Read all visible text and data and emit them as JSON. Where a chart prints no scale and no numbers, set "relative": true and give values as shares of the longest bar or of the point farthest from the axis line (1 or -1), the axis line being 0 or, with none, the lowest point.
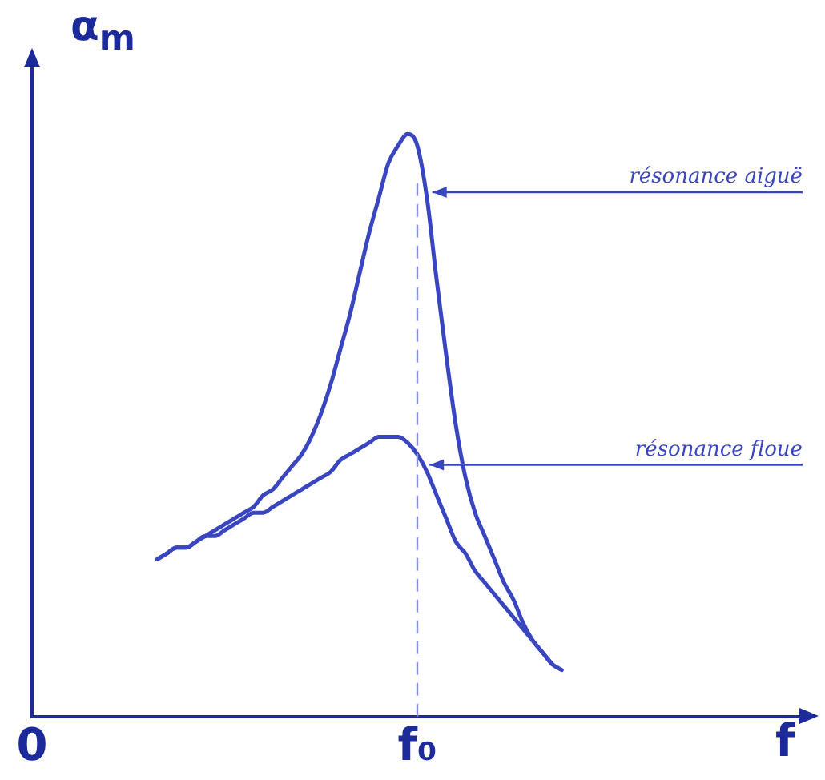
{
  "chart_data": {
    "type": "line",
    "relative": true,
    "xlabel": "f",
    "ylabel": "α$_{m}$",
    "categories": [
      "0",
      null,
      null,
      null,
      null,
      null,
      null,
      null,
      null,
      null,
      null,
      null,
      null,
      null,
      null,
      null,
      null,
      null,
      null,
      null,
      null,
      null,
      null,
      null,
      null,
      null,
      null,
      null,
      null,
      null,
      null,
      null,
      null,
      null,
      null,
      null,
      null,
      null,
      null,
      null,
      "f₀",
      null,
      null,
      null,
      null,
      null,
      null,
      null,
      null,
      null,
      null,
      null,
      null,
      null,
      null,
      null,
      null,
      null,
      null,
      null,
      null,
      null,
      null,
      null,
      null,
      null,
      null,
      null,
      null,
      null,
      null,
      null,
      null,
      null,
      null,
      null,
      null,
      null,
      null,
      null,
      null
    ],
    "grid": false,
    "legend": false,
    "marker": "none",
    "line_style": "solid",
    "ref_lines": [
      {
        "axis": "x",
        "value": "f₀",
        "label": null,
        "line_style": "dashed",
        "color": "#8a90d8"
      }
    ],
    "series": [
      {
        "name": "résonance aiguë",
        "color": "#3a46c0",
        "values": [
          null,
          null,
          null,
          null,
          null,
          null,
          null,
          null,
          null,
          null,
          null,
          null,
          null,
          0.27,
          0.28,
          0.29,
          0.29,
          0.3,
          0.31,
          0.32,
          0.33,
          0.34,
          0.35,
          0.36,
          0.38,
          0.39,
          0.41,
          0.43,
          0.45,
          0.48,
          0.52,
          0.57,
          0.63,
          0.69,
          0.76,
          0.83,
          0.89,
          0.95,
          0.98,
          1,
          0.98,
          0.89,
          0.75,
          0.62,
          0.5,
          0.41,
          0.35,
          0.31,
          0.27,
          0.23,
          0.2,
          0.16,
          0.13,
          0.11,
          0.09,
          0.08,
          null,
          null,
          null,
          null,
          null,
          null,
          null,
          null,
          null,
          null,
          null,
          null,
          null,
          null,
          null,
          null,
          null,
          null,
          null,
          null,
          null,
          null,
          null,
          null,
          null
        ]
      },
      {
        "name": "résonance floue",
        "color": "#3a46c0",
        "values": [
          null,
          null,
          null,
          null,
          null,
          null,
          null,
          null,
          null,
          null,
          null,
          null,
          null,
          0.27,
          0.28,
          0.29,
          0.29,
          0.3,
          0.31,
          0.31,
          0.32,
          0.33,
          0.34,
          0.35,
          0.35,
          0.36,
          0.37,
          0.38,
          0.39,
          0.4,
          0.41,
          0.42,
          0.44,
          0.45,
          0.46,
          0.47,
          0.48,
          0.48,
          0.48,
          0.47,
          0.45,
          0.42,
          0.38,
          0.34,
          0.3,
          0.28,
          0.25,
          0.23,
          0.21,
          0.19,
          0.17,
          0.15,
          0.13,
          0.11,
          0.09,
          null,
          null,
          null,
          null,
          null,
          null,
          null,
          null,
          null,
          null,
          null,
          null,
          null,
          null,
          null,
          null,
          null,
          null,
          null,
          null,
          null,
          null,
          null,
          null,
          null,
          null
        ]
      }
    ]
  }
}
